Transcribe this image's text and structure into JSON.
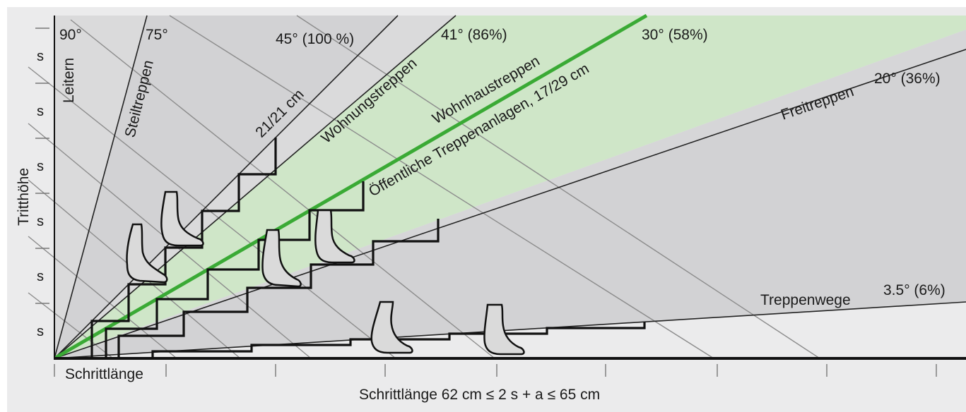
{
  "y_axis_label": "Tritthöhe",
  "x_axis_label": "Schrittlänge 62 cm ≤ 2 s + a ≤ 65 cm",
  "step_length_label": "Schrittlänge",
  "riser_symbol": "s",
  "angles": {
    "a90": "90°",
    "a75": "75°",
    "a45": "45° (100 %)",
    "a41": "41° (86%)",
    "a30": "30° (58%)",
    "a20": "20° (36%)",
    "a3": "3.5° (6%)"
  },
  "categories": {
    "leitern": "Leitern",
    "steiltreppen": "Steiltreppen",
    "size_2121": "21/21 cm",
    "wohnungstreppen": "Wohnungstreppen",
    "wohnhaustreppen": "Wohnhaustreppen",
    "oeffentliche": "Öffentliche Treppenanlagen, 17/29 cm",
    "freitreppen": "Freitreppen",
    "treppenwege": "Treppenwege"
  },
  "colors": {
    "background": "#ebebec",
    "sector_gray": "#d6d6d8",
    "sector_green": "#cfe6c8",
    "highlight_line": "#3aaa35",
    "stairs": "#111111",
    "guide_lines": "#8c8c8c",
    "foot_fill": "#dadada"
  },
  "icons": {
    "foot": "foot-icon"
  }
}
